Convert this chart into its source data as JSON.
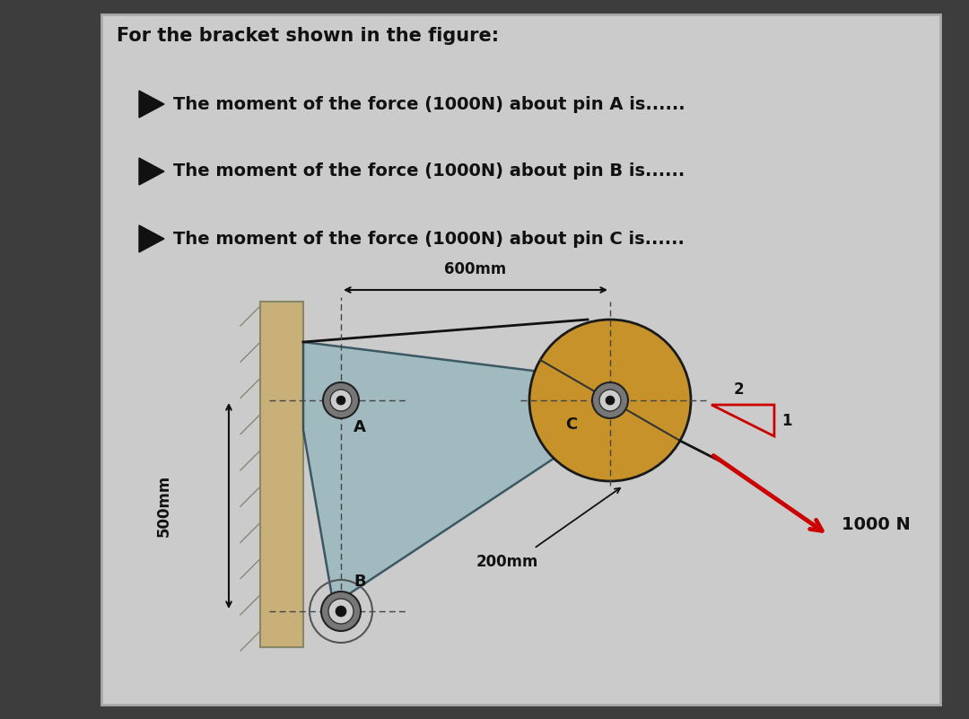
{
  "background_color": "#3d3d3d",
  "panel_color": "#cbcbcb",
  "title": "For the bracket shown in the figure:",
  "bullet1": "> The moment of the force (1000N) about pin A is......",
  "bullet2": "> The moment of the force (1000N) about pin B is......",
  "bullet3": "> The moment of the force (1000N) about pin C is......",
  "bracket_color": "#9bb8be",
  "bracket_edge_color": "#2a4a55",
  "wall_color": "#c8b078",
  "wall_edge_color": "#888866",
  "pulley_color": "#c8922a",
  "pulley_edge_color": "#1a1a1a",
  "pin_ring_color": "#909090",
  "pin_dot_color": "#111111",
  "force_arrow_color": "#cc0000",
  "dim_color": "#111111",
  "text_color": "#111111",
  "force_magnitude": "1000 N",
  "label_600mm": "600mm",
  "label_500mm": "500mm",
  "label_200mm": "200mm",
  "label_2": "2",
  "label_1": "1",
  "label_A": "A",
  "label_B": "B",
  "label_C": "C"
}
